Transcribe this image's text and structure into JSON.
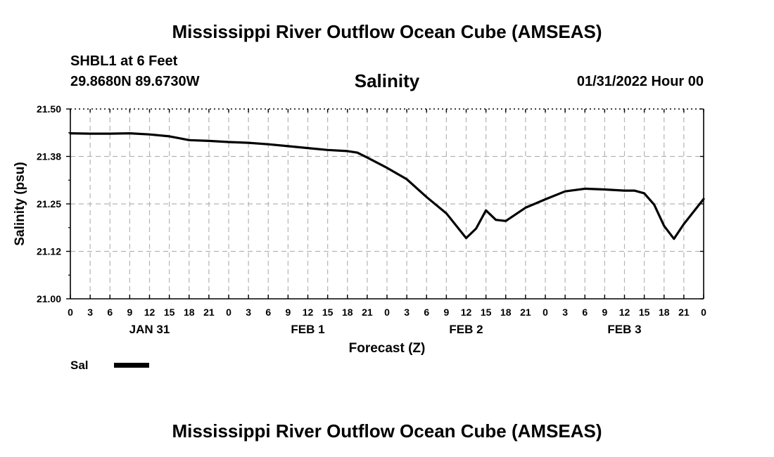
{
  "header": {
    "title": "Mississippi River Outflow Ocean Cube (AMSEAS)",
    "station": "SHBL1 at 6 Feet",
    "coords": "29.8680N  89.6730W",
    "subtitle": "Salinity",
    "datetime": "01/31/2022 Hour 00"
  },
  "footer": {
    "title": "Mississippi River Outflow Ocean Cube (AMSEAS)"
  },
  "legend": {
    "label": "Sal",
    "color": "#000000",
    "placement": "bottom-left"
  },
  "chart_data": {
    "type": "line",
    "title": "Salinity",
    "xlabel": "Forecast (Z)",
    "ylabel": "Salinity (psu)",
    "xlim": [
      0,
      96
    ],
    "ylim": [
      21.0,
      21.5
    ],
    "grid": true,
    "y_ticks": [
      "21.50",
      "21.38",
      "21.25",
      "21.12",
      "21.00"
    ],
    "y_tick_values": [
      21.5,
      21.375,
      21.25,
      21.125,
      21.0
    ],
    "x_tick_labels": [
      "0",
      "3",
      "6",
      "9",
      "12",
      "15",
      "18",
      "21",
      "0",
      "3",
      "6",
      "9",
      "12",
      "15",
      "18",
      "21",
      "0",
      "3",
      "6",
      "9",
      "12",
      "15",
      "18",
      "21",
      "0",
      "3",
      "6",
      "9",
      "12",
      "15",
      "18",
      "21",
      "0"
    ],
    "day_labels": [
      {
        "label": "JAN 31",
        "hour": 12
      },
      {
        "label": "FEB 1",
        "hour": 36
      },
      {
        "label": "FEB 2",
        "hour": 60
      },
      {
        "label": "FEB 3",
        "hour": 84
      }
    ],
    "series": [
      {
        "name": "Sal",
        "x": [
          0,
          3,
          6,
          9,
          12,
          15,
          16.5,
          18,
          21,
          24,
          27,
          30,
          33,
          36,
          39,
          42,
          43.5,
          45,
          48,
          51,
          54,
          57,
          60,
          61.5,
          63,
          64.5,
          66,
          69,
          72,
          75,
          78,
          81,
          84,
          85.5,
          87,
          88.5,
          90,
          91.5,
          93,
          96
        ],
        "y": [
          21.436,
          21.435,
          21.435,
          21.436,
          21.433,
          21.428,
          21.423,
          21.418,
          21.416,
          21.413,
          21.411,
          21.407,
          21.402,
          21.397,
          21.392,
          21.389,
          21.385,
          21.372,
          21.345,
          21.315,
          21.268,
          21.225,
          21.16,
          21.185,
          21.233,
          21.208,
          21.205,
          21.24,
          21.262,
          21.283,
          21.29,
          21.288,
          21.285,
          21.285,
          21.278,
          21.248,
          21.192,
          21.158,
          21.197,
          21.263
        ]
      }
    ]
  }
}
